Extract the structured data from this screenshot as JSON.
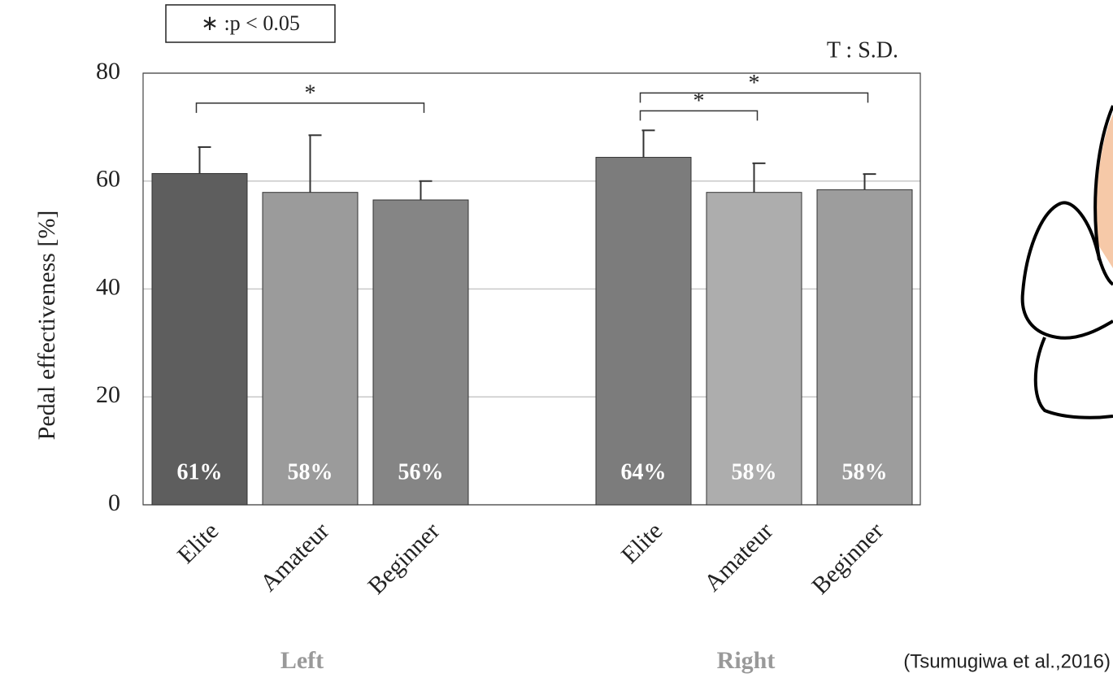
{
  "chart_data": {
    "type": "bar",
    "y_label": "Pedal effectiveness [%]",
    "legend_note": "∗ :p < 0.05",
    "error_note": "T : S.D.",
    "source": "(Tsumugiwa et al.,2016)",
    "categories": [
      "Elite",
      "Amateur",
      "Beginner",
      "Elite",
      "Amateur",
      "Beginner"
    ],
    "groups": [
      "Left",
      "Right"
    ],
    "values": [
      61.4,
      57.9,
      56.5,
      64.4,
      57.9,
      58.4
    ],
    "value_labels": [
      "61%",
      "58%",
      "56%",
      "64%",
      "58%",
      "58%"
    ],
    "errors": [
      4.9,
      10.6,
      3.5,
      5,
      5.4,
      2.9
    ],
    "colors": [
      "#5e5e5e",
      "#9b9b9b",
      "#858585",
      "#7c7c7c",
      "#adadad",
      "#9d9d9d"
    ],
    "significance": [
      {
        "from": 0,
        "to": 2,
        "label": "*"
      },
      {
        "from": 3,
        "to": 4,
        "label": "*"
      },
      {
        "from": 3,
        "to": 5,
        "label": "*"
      }
    ],
    "ylim": [
      0,
      80
    ],
    "yticks": [
      0,
      20,
      40,
      60,
      80
    ],
    "grid": true
  }
}
